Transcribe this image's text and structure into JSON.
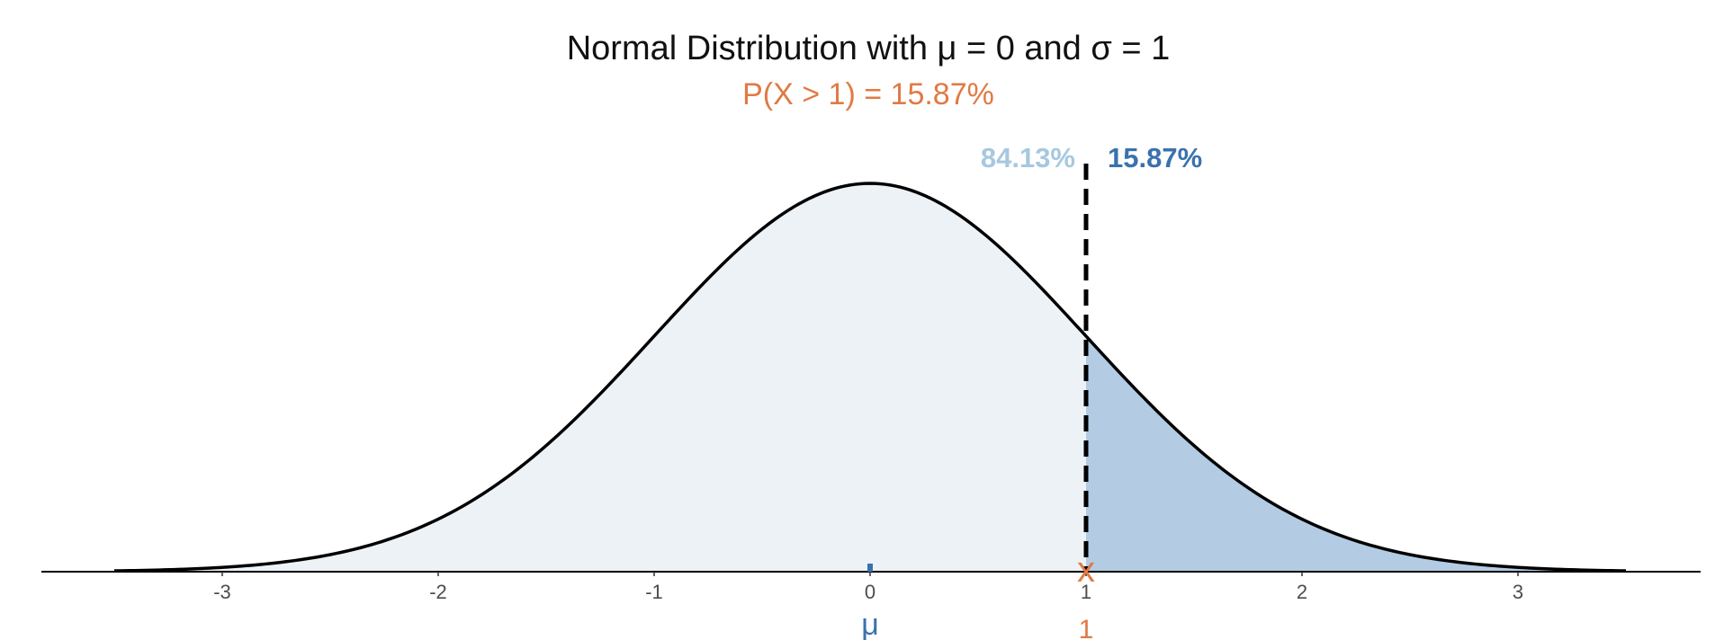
{
  "chart_data": {
    "type": "area",
    "title": "Normal Distribution with μ  =  0 and σ  =  1",
    "subtitle": "P(X  >  1)  =  15.87%",
    "distribution": {
      "mean": 0,
      "sd": 1
    },
    "x_range": [
      -3.5,
      3.5
    ],
    "x_ticks": [
      -3,
      -2,
      -1,
      0,
      1,
      2,
      3
    ],
    "x_tick_labels": [
      "-3",
      "-2",
      "-1",
      "0",
      "1",
      "2",
      "3"
    ],
    "cutoff": 1,
    "regions": [
      {
        "label": "84.13%",
        "from": -3.5,
        "to": 1,
        "fill": "#edf2f7",
        "label_color": "#a6c8e0"
      },
      {
        "label": "15.87%",
        "from": 1,
        "to": 3.5,
        "fill": "#b3cbe3",
        "label_color": "#3a72ad"
      }
    ],
    "mean_marker": {
      "label": "μ",
      "x": 0,
      "color": "#3a72ad"
    },
    "cutoff_marker": {
      "symbol": "x",
      "label": "1",
      "x": 1,
      "color": "#e07a45"
    },
    "grid": false,
    "legend": "none",
    "colors": {
      "curve": "#000000",
      "axis": "#000000",
      "subtitle": "#e07a45"
    }
  }
}
